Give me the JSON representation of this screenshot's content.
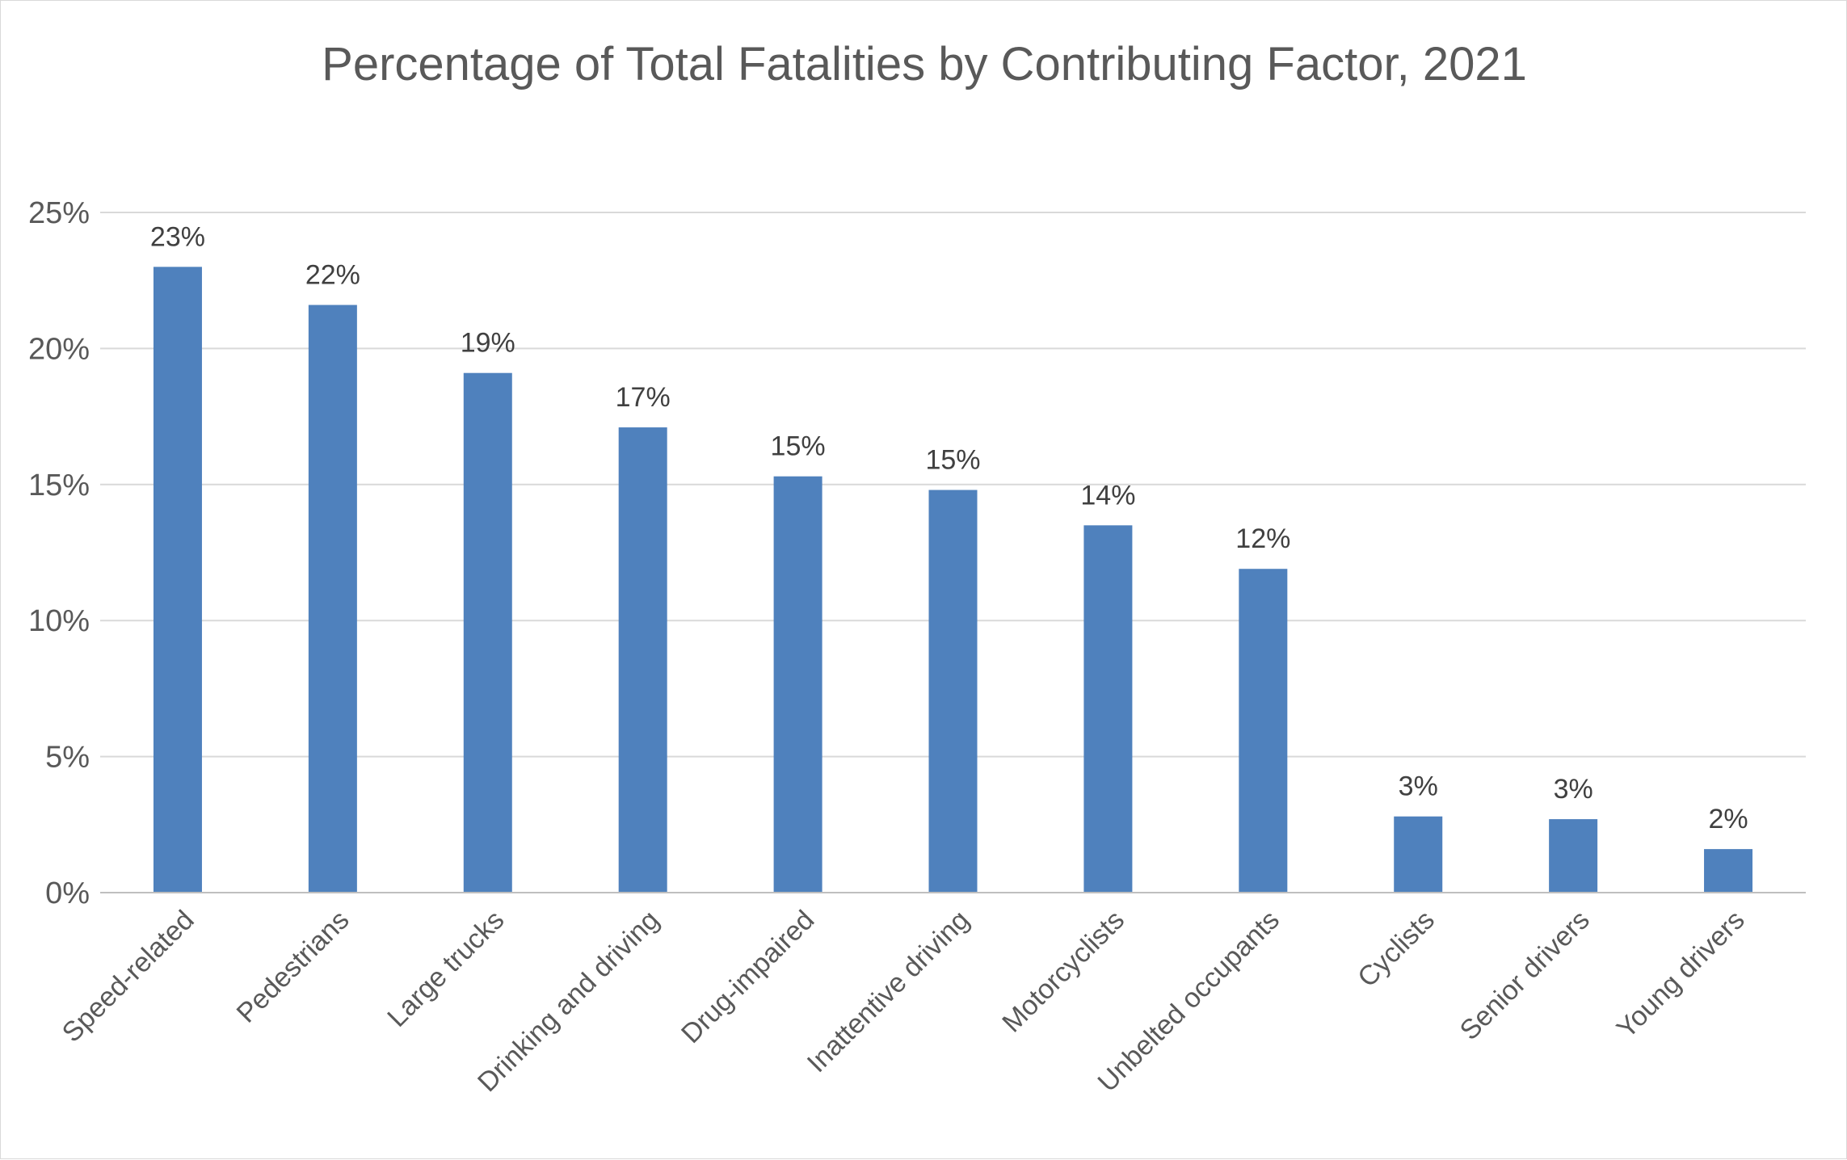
{
  "chart_data": {
    "type": "bar",
    "title": "Percentage of Total Fatalities by Contributing Factor, 2021",
    "xlabel": "",
    "ylabel": "",
    "categories": [
      "Speed-related",
      "Pedestrians",
      "Large trucks",
      "Drinking and driving",
      "Drug-impaired",
      "Inattentive driving",
      "Motorcyclists",
      "Unbelted occupants",
      "Cyclists",
      "Senior drivers",
      "Young drivers"
    ],
    "values": [
      23.0,
      21.6,
      19.1,
      17.1,
      15.3,
      14.8,
      13.5,
      11.9,
      2.8,
      2.7,
      1.6
    ],
    "data_labels": [
      "23%",
      "22%",
      "19%",
      "17%",
      "15%",
      "15%",
      "14%",
      "12%",
      "3%",
      "3%",
      "2%"
    ],
    "ylim": [
      0,
      25
    ],
    "yticks": [
      0,
      5,
      10,
      15,
      20,
      25
    ],
    "ytick_labels": [
      "0%",
      "5%",
      "10%",
      "15%",
      "20%",
      "25%"
    ],
    "grid": true,
    "legend": "none",
    "colors": {
      "bar": "#4f81bd",
      "grid": "#d9d9d9",
      "axis": "#bfbfbf"
    }
  }
}
